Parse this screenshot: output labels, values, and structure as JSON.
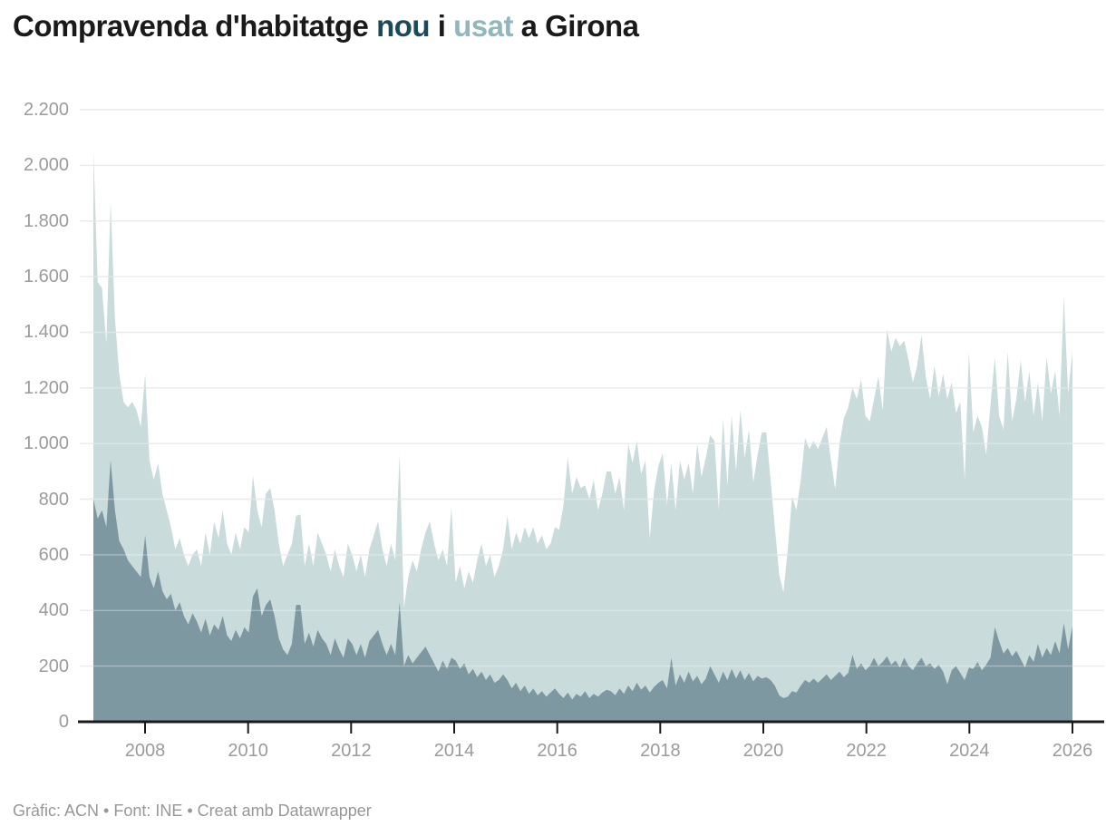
{
  "title": {
    "part1": "Compravenda d'habitatge ",
    "nou": "nou",
    "part2": " i ",
    "usat": "usat",
    "part3": " a Girona"
  },
  "footer": {
    "text": "Gràfic: ACN • Font: INE • Creat amb Datawrapper"
  },
  "colors": {
    "nou_accent": "#1d4a5a",
    "usat_accent": "#8fb7bd",
    "nou_area": "#7d98a1",
    "usat_area": "#c9dbdb",
    "axis_label": "#9b9b9b",
    "gridline": "#e2e2e2",
    "baseline": "#1a1a1a"
  },
  "chart_data": {
    "type": "area",
    "mode": "overlapping",
    "title": "Compravenda d'habitatge nou i usat a Girona",
    "x_start": "2007-01",
    "x_end": "2025-12",
    "frequency": "monthly",
    "ylim": [
      0,
      2200
    ],
    "grid": true,
    "legend_position": "in-title",
    "y_ticks": {
      "values": [
        0,
        200,
        400,
        600,
        800,
        1000,
        1200,
        1400,
        1600,
        1800,
        2000,
        2200
      ],
      "labels": [
        "0",
        "200",
        "400",
        "600",
        "800",
        "1.000",
        "1.200",
        "1.400",
        "1.600",
        "1.800",
        "2.000",
        "2.200"
      ]
    },
    "x_ticks": [
      2008,
      2010,
      2012,
      2014,
      2016,
      2018,
      2020,
      2022,
      2024,
      2026
    ],
    "series": [
      {
        "name": "usat",
        "color": "#c9dbdb",
        "values": [
          2050,
          1580,
          1560,
          1360,
          1870,
          1450,
          1250,
          1150,
          1130,
          1150,
          1120,
          1060,
          1250,
          940,
          870,
          930,
          820,
          760,
          700,
          620,
          660,
          600,
          560,
          600,
          620,
          560,
          680,
          600,
          720,
          660,
          760,
          640,
          600,
          680,
          620,
          700,
          680,
          885,
          760,
          700,
          820,
          840,
          760,
          640,
          560,
          600,
          640,
          740,
          745,
          560,
          640,
          560,
          680,
          640,
          600,
          540,
          620,
          560,
          520,
          640,
          600,
          540,
          600,
          520,
          620,
          670,
          720,
          620,
          560,
          640,
          580,
          960,
          410,
          520,
          580,
          540,
          620,
          680,
          720,
          640,
          580,
          620,
          560,
          770,
          500,
          560,
          480,
          540,
          500,
          580,
          640,
          560,
          600,
          520,
          560,
          620,
          740,
          620,
          680,
          640,
          700,
          660,
          700,
          640,
          670,
          620,
          640,
          700,
          690,
          780,
          950,
          820,
          880,
          840,
          850,
          800,
          870,
          760,
          820,
          900,
          900,
          820,
          880,
          760,
          1000,
          930,
          1010,
          890,
          940,
          660,
          830,
          920,
          965,
          780,
          930,
          760,
          940,
          870,
          930,
          820,
          1000,
          880,
          950,
          1030,
          1010,
          760,
          1090,
          850,
          1100,
          900,
          1120,
          950,
          1050,
          860,
          960,
          1040,
          1040,
          870,
          700,
          530,
          465,
          620,
          810,
          760,
          870,
          1020,
          980,
          1010,
          980,
          1020,
          1060,
          940,
          835,
          1000,
          1090,
          1130,
          1200,
          1160,
          1230,
          1100,
          1080,
          1160,
          1240,
          1120,
          1410,
          1330,
          1380,
          1350,
          1370,
          1300,
          1220,
          1280,
          1390,
          1240,
          1160,
          1280,
          1170,
          1250,
          1160,
          1220,
          1110,
          1150,
          870,
          1330,
          1040,
          1100,
          1060,
          960,
          1140,
          1310,
          1100,
          1050,
          1330,
          1080,
          1160,
          1300,
          1150,
          1260,
          1100,
          1220,
          1080,
          1310,
          1180,
          1260,
          1100,
          1530,
          1180,
          1330
        ]
      },
      {
        "name": "nou",
        "color": "#7d98a1",
        "values": [
          800,
          730,
          760,
          700,
          940,
          760,
          650,
          620,
          580,
          560,
          540,
          520,
          670,
          520,
          480,
          540,
          470,
          440,
          460,
          400,
          430,
          380,
          350,
          390,
          360,
          320,
          370,
          310,
          350,
          330,
          380,
          310,
          290,
          330,
          300,
          340,
          320,
          450,
          480,
          380,
          420,
          440,
          380,
          300,
          260,
          240,
          280,
          420,
          420,
          280,
          320,
          270,
          330,
          300,
          280,
          240,
          300,
          260,
          230,
          300,
          280,
          240,
          280,
          230,
          290,
          310,
          330,
          280,
          240,
          280,
          240,
          430,
          200,
          240,
          210,
          230,
          250,
          270,
          240,
          210,
          180,
          220,
          190,
          230,
          220,
          190,
          210,
          170,
          190,
          160,
          180,
          150,
          170,
          140,
          150,
          170,
          150,
          120,
          140,
          110,
          130,
          100,
          120,
          95,
          110,
          90,
          105,
          120,
          100,
          85,
          105,
          80,
          100,
          90,
          110,
          85,
          100,
          90,
          105,
          115,
          110,
          95,
          120,
          100,
          130,
          110,
          140,
          115,
          130,
          105,
          125,
          140,
          150,
          120,
          230,
          130,
          170,
          140,
          180,
          145,
          165,
          135,
          155,
          200,
          170,
          140,
          180,
          150,
          190,
          155,
          185,
          150,
          175,
          145,
          165,
          155,
          160,
          150,
          130,
          95,
          85,
          90,
          110,
          105,
          130,
          150,
          140,
          155,
          140,
          155,
          170,
          150,
          165,
          180,
          160,
          175,
          240,
          190,
          210,
          185,
          200,
          230,
          200,
          215,
          235,
          205,
          220,
          195,
          230,
          200,
          185,
          210,
          230,
          200,
          210,
          190,
          205,
          180,
          135,
          185,
          200,
          175,
          150,
          195,
          190,
          215,
          185,
          205,
          230,
          340,
          290,
          245,
          265,
          235,
          255,
          225,
          195,
          240,
          215,
          280,
          230,
          265,
          240,
          290,
          245,
          355,
          260,
          345
        ]
      }
    ]
  }
}
